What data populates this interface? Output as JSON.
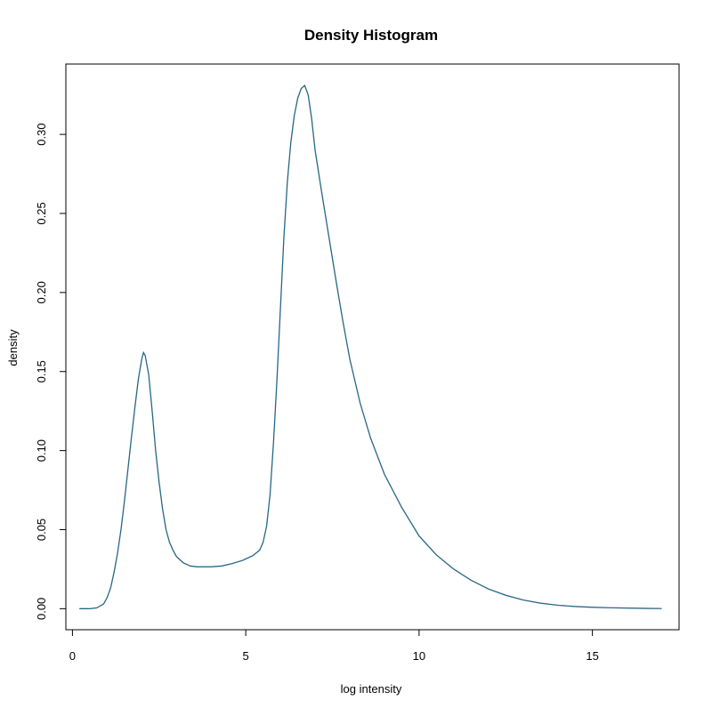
{
  "chart_data": {
    "type": "line",
    "title": "Density Histogram",
    "xlabel": "log intensity",
    "ylabel": "density",
    "xlim": [
      -0.19,
      17.5
    ],
    "ylim": [
      -0.0133,
      0.3445
    ],
    "x_ticks": [
      0,
      5,
      10,
      15
    ],
    "x_tick_labels": [
      "0",
      "5",
      "10",
      "15"
    ],
    "y_ticks": [
      0.0,
      0.05,
      0.1,
      0.15,
      0.2,
      0.25,
      0.3
    ],
    "y_tick_labels": [
      "0.00",
      "0.05",
      "0.10",
      "0.15",
      "0.20",
      "0.25",
      "0.30"
    ],
    "grid": false,
    "series": [
      {
        "color": "#1a6a8c",
        "points": [
          [
            0.2,
            0.0
          ],
          [
            0.5,
            0.0
          ],
          [
            0.7,
            0.0005
          ],
          [
            0.9,
            0.003
          ],
          [
            1.0,
            0.007
          ],
          [
            1.1,
            0.013
          ],
          [
            1.2,
            0.023
          ],
          [
            1.3,
            0.035
          ],
          [
            1.4,
            0.05
          ],
          [
            1.5,
            0.068
          ],
          [
            1.6,
            0.088
          ],
          [
            1.7,
            0.108
          ],
          [
            1.8,
            0.127
          ],
          [
            1.9,
            0.145
          ],
          [
            2.0,
            0.158
          ],
          [
            2.05,
            0.162
          ],
          [
            2.1,
            0.16
          ],
          [
            2.2,
            0.148
          ],
          [
            2.3,
            0.125
          ],
          [
            2.4,
            0.1
          ],
          [
            2.5,
            0.08
          ],
          [
            2.6,
            0.063
          ],
          [
            2.7,
            0.05
          ],
          [
            2.8,
            0.042
          ],
          [
            2.9,
            0.037
          ],
          [
            3.0,
            0.033
          ],
          [
            3.2,
            0.029
          ],
          [
            3.4,
            0.027
          ],
          [
            3.6,
            0.0265
          ],
          [
            3.8,
            0.0265
          ],
          [
            4.0,
            0.0265
          ],
          [
            4.3,
            0.027
          ],
          [
            4.6,
            0.0285
          ],
          [
            4.9,
            0.0305
          ],
          [
            5.2,
            0.0335
          ],
          [
            5.4,
            0.037
          ],
          [
            5.5,
            0.042
          ],
          [
            5.6,
            0.052
          ],
          [
            5.7,
            0.072
          ],
          [
            5.8,
            0.105
          ],
          [
            5.9,
            0.145
          ],
          [
            6.0,
            0.19
          ],
          [
            6.1,
            0.235
          ],
          [
            6.2,
            0.27
          ],
          [
            6.3,
            0.295
          ],
          [
            6.4,
            0.312
          ],
          [
            6.5,
            0.323
          ],
          [
            6.6,
            0.329
          ],
          [
            6.7,
            0.331
          ],
          [
            6.8,
            0.325
          ],
          [
            6.9,
            0.31
          ],
          [
            7.0,
            0.29
          ],
          [
            7.2,
            0.262
          ],
          [
            7.4,
            0.235
          ],
          [
            7.6,
            0.208
          ],
          [
            7.8,
            0.182
          ],
          [
            8.0,
            0.158
          ],
          [
            8.3,
            0.13
          ],
          [
            8.6,
            0.108
          ],
          [
            9.0,
            0.085
          ],
          [
            9.5,
            0.064
          ],
          [
            10.0,
            0.046
          ],
          [
            10.5,
            0.034
          ],
          [
            11.0,
            0.025
          ],
          [
            11.5,
            0.018
          ],
          [
            12.0,
            0.0125
          ],
          [
            12.5,
            0.0085
          ],
          [
            13.0,
            0.0055
          ],
          [
            13.5,
            0.0035
          ],
          [
            14.0,
            0.0022
          ],
          [
            14.5,
            0.0014
          ],
          [
            15.0,
            0.0009
          ],
          [
            15.5,
            0.0006
          ],
          [
            16.0,
            0.0004
          ],
          [
            16.5,
            0.0002
          ],
          [
            17.0,
            0.0001
          ]
        ]
      }
    ]
  },
  "style": {
    "line_color": "#1a6a8c",
    "accent_color": "#c0392b",
    "axis_color": "#000000"
  }
}
